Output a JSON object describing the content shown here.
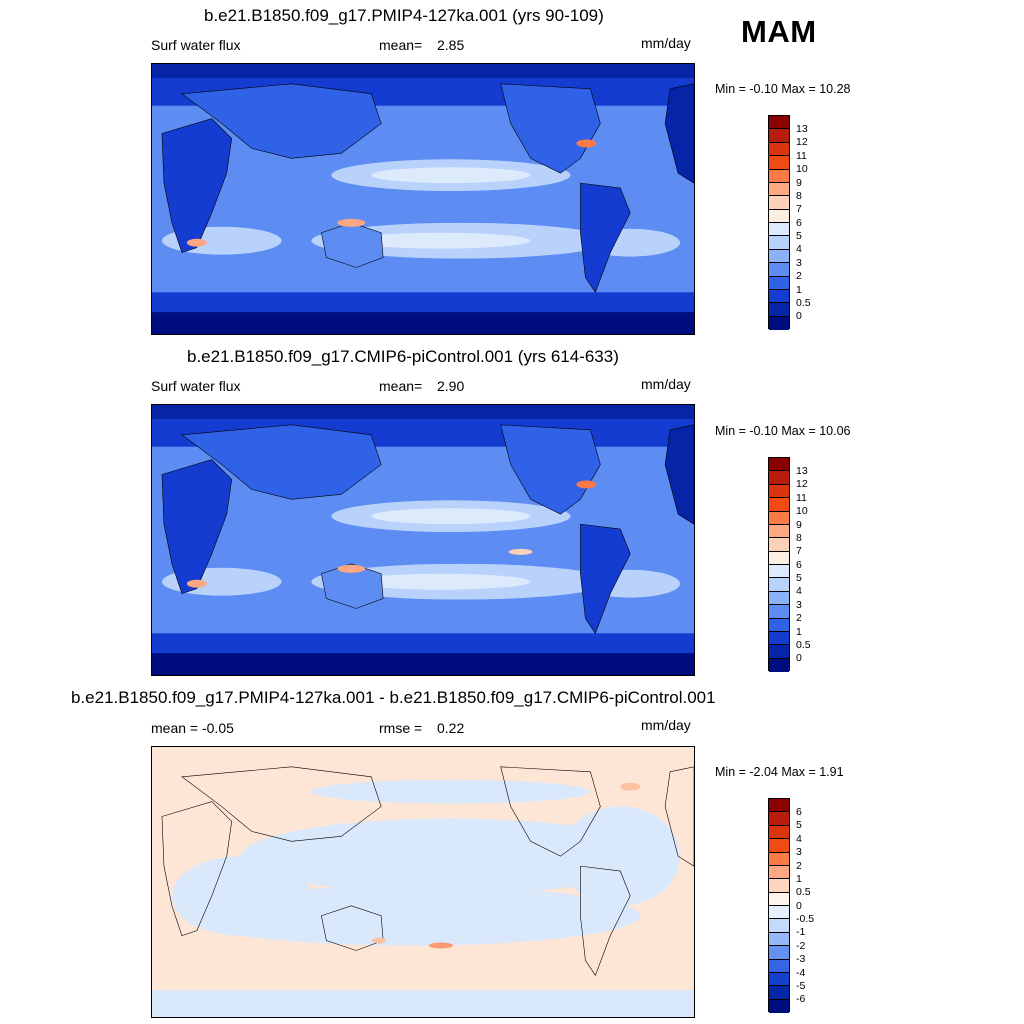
{
  "season": "MAM",
  "panels": [
    {
      "title": "b.e21.B1850.f09_g17.PMIP4-127ka.001 (yrs 90-109)",
      "left_label": "Surf water flux",
      "mid_label": "mean=",
      "mid_value": "2.85",
      "units": "mm/day",
      "minmax": "Min =  -0.10 Max =  10.28",
      "colorbar_ticks": [
        "13",
        "12",
        "11",
        "10",
        "9",
        "8",
        "7",
        "6",
        "5",
        "4",
        "3",
        "2",
        "1",
        "0.5",
        "0"
      ],
      "colorbar_colors": [
        "#8b0000",
        "#b71c0c",
        "#d9350f",
        "#f04a15",
        "#fb7a45",
        "#fda882",
        "#fdd0b8",
        "#fdeee2",
        "#ddeafc",
        "#b9d2fb",
        "#8bb1f8",
        "#5d8cf2",
        "#2f62e6",
        "#143cd0",
        "#0624a8",
        "#000d7e"
      ]
    },
    {
      "title": "b.e21.B1850.f09_g17.CMIP6-piControl.001 (yrs 614-633)",
      "left_label": "Surf water flux",
      "mid_label": "mean=",
      "mid_value": "2.90",
      "units": "mm/day",
      "minmax": "Min =  -0.10 Max =  10.06",
      "colorbar_ticks": [
        "13",
        "12",
        "11",
        "10",
        "9",
        "8",
        "7",
        "6",
        "5",
        "4",
        "3",
        "2",
        "1",
        "0.5",
        "0"
      ],
      "colorbar_colors": [
        "#8b0000",
        "#b71c0c",
        "#d9350f",
        "#f04a15",
        "#fb7a45",
        "#fda882",
        "#fdd0b8",
        "#fdeee2",
        "#ddeafc",
        "#b9d2fb",
        "#8bb1f8",
        "#5d8cf2",
        "#2f62e6",
        "#143cd0",
        "#0624a8",
        "#000d7e"
      ]
    },
    {
      "title": "b.e21.B1850.f09_g17.PMIP4-127ka.001 - b.e21.B1850.f09_g17.CMIP6-piControl.001",
      "left_label": "mean =  -0.05",
      "mid_label": "rmse =",
      "mid_value": "0.22",
      "units": "mm/day",
      "minmax": "Min =  -2.04 Max =   1.91",
      "colorbar_ticks": [
        "6",
        "5",
        "4",
        "3",
        "2",
        "1",
        "0.5",
        "0",
        "-0.5",
        "-1",
        "-2",
        "-3",
        "-4",
        "-5",
        "-6"
      ],
      "colorbar_colors": [
        "#8b0000",
        "#b71c0c",
        "#d9350f",
        "#f04a15",
        "#fb7a45",
        "#fda882",
        "#fdd5c0",
        "#fff3ea",
        "#e6f0fc",
        "#c4d9fb",
        "#96b8f8",
        "#6690f1",
        "#3565e5",
        "#1440cc",
        "#0526a5",
        "#000d7e"
      ]
    }
  ]
}
